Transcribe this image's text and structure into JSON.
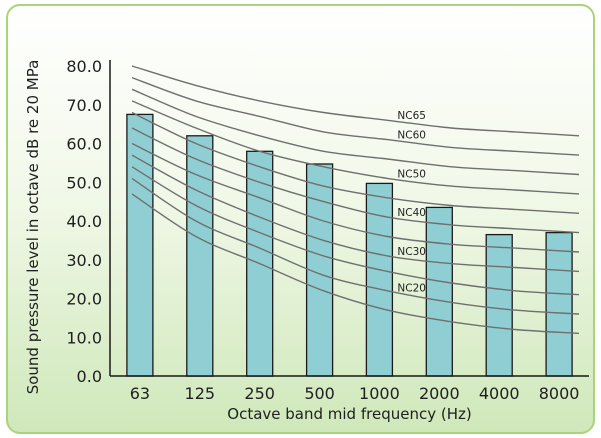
{
  "chart_data": {
    "type": "bar",
    "categories": [
      "63",
      "125",
      "250",
      "500",
      "1000",
      "2000",
      "4000",
      "8000"
    ],
    "values": [
      67.5,
      62,
      58,
      54.7,
      49.7,
      43.5,
      36.5,
      37
    ],
    "ylabel": "Sound pressure level in octave dB re 20 MPa",
    "xlabel": "Octave band mid frequency (Hz)",
    "ylim": [
      0,
      80
    ],
    "yticks": [
      "0.0",
      "10.0",
      "20.0",
      "30.0",
      "40.0",
      "50.0",
      "60.0",
      "70.0",
      "80.0"
    ],
    "grid": false,
    "bar_color": "#8fcfd3",
    "curve_color": "#6f6f6f",
    "nc_curves": [
      {
        "label": "NC65",
        "values": [
          80,
          75,
          71,
          68,
          66,
          64,
          63,
          62
        ]
      },
      {
        "label": "NC60",
        "values": [
          77,
          71,
          67,
          63,
          61,
          59,
          58,
          57
        ]
      },
      {
        "label": "",
        "values": [
          74,
          67,
          62,
          58,
          56,
          54,
          53,
          52
        ]
      },
      {
        "label": "NC50",
        "values": [
          71,
          64,
          58,
          54,
          51,
          49,
          48,
          47
        ]
      },
      {
        "label": "",
        "values": [
          68,
          60,
          54,
          49,
          46,
          44,
          43,
          42
        ]
      },
      {
        "label": "NC40",
        "values": [
          64,
          56,
          50,
          45,
          41,
          39,
          38,
          37
        ]
      },
      {
        "label": "",
        "values": [
          60,
          52,
          46,
          40,
          36,
          34,
          33,
          32
        ]
      },
      {
        "label": "NC30",
        "values": [
          57,
          48,
          41,
          35,
          31,
          29,
          28,
          27
        ]
      },
      {
        "label": "",
        "values": [
          54,
          44,
          37,
          31,
          27,
          24,
          22,
          21
        ]
      },
      {
        "label": "NC20",
        "values": [
          51,
          40,
          33,
          26,
          22,
          19,
          17,
          16
        ]
      },
      {
        "label": "",
        "values": [
          47,
          36,
          29,
          22,
          17,
          14,
          12,
          11
        ]
      }
    ]
  }
}
